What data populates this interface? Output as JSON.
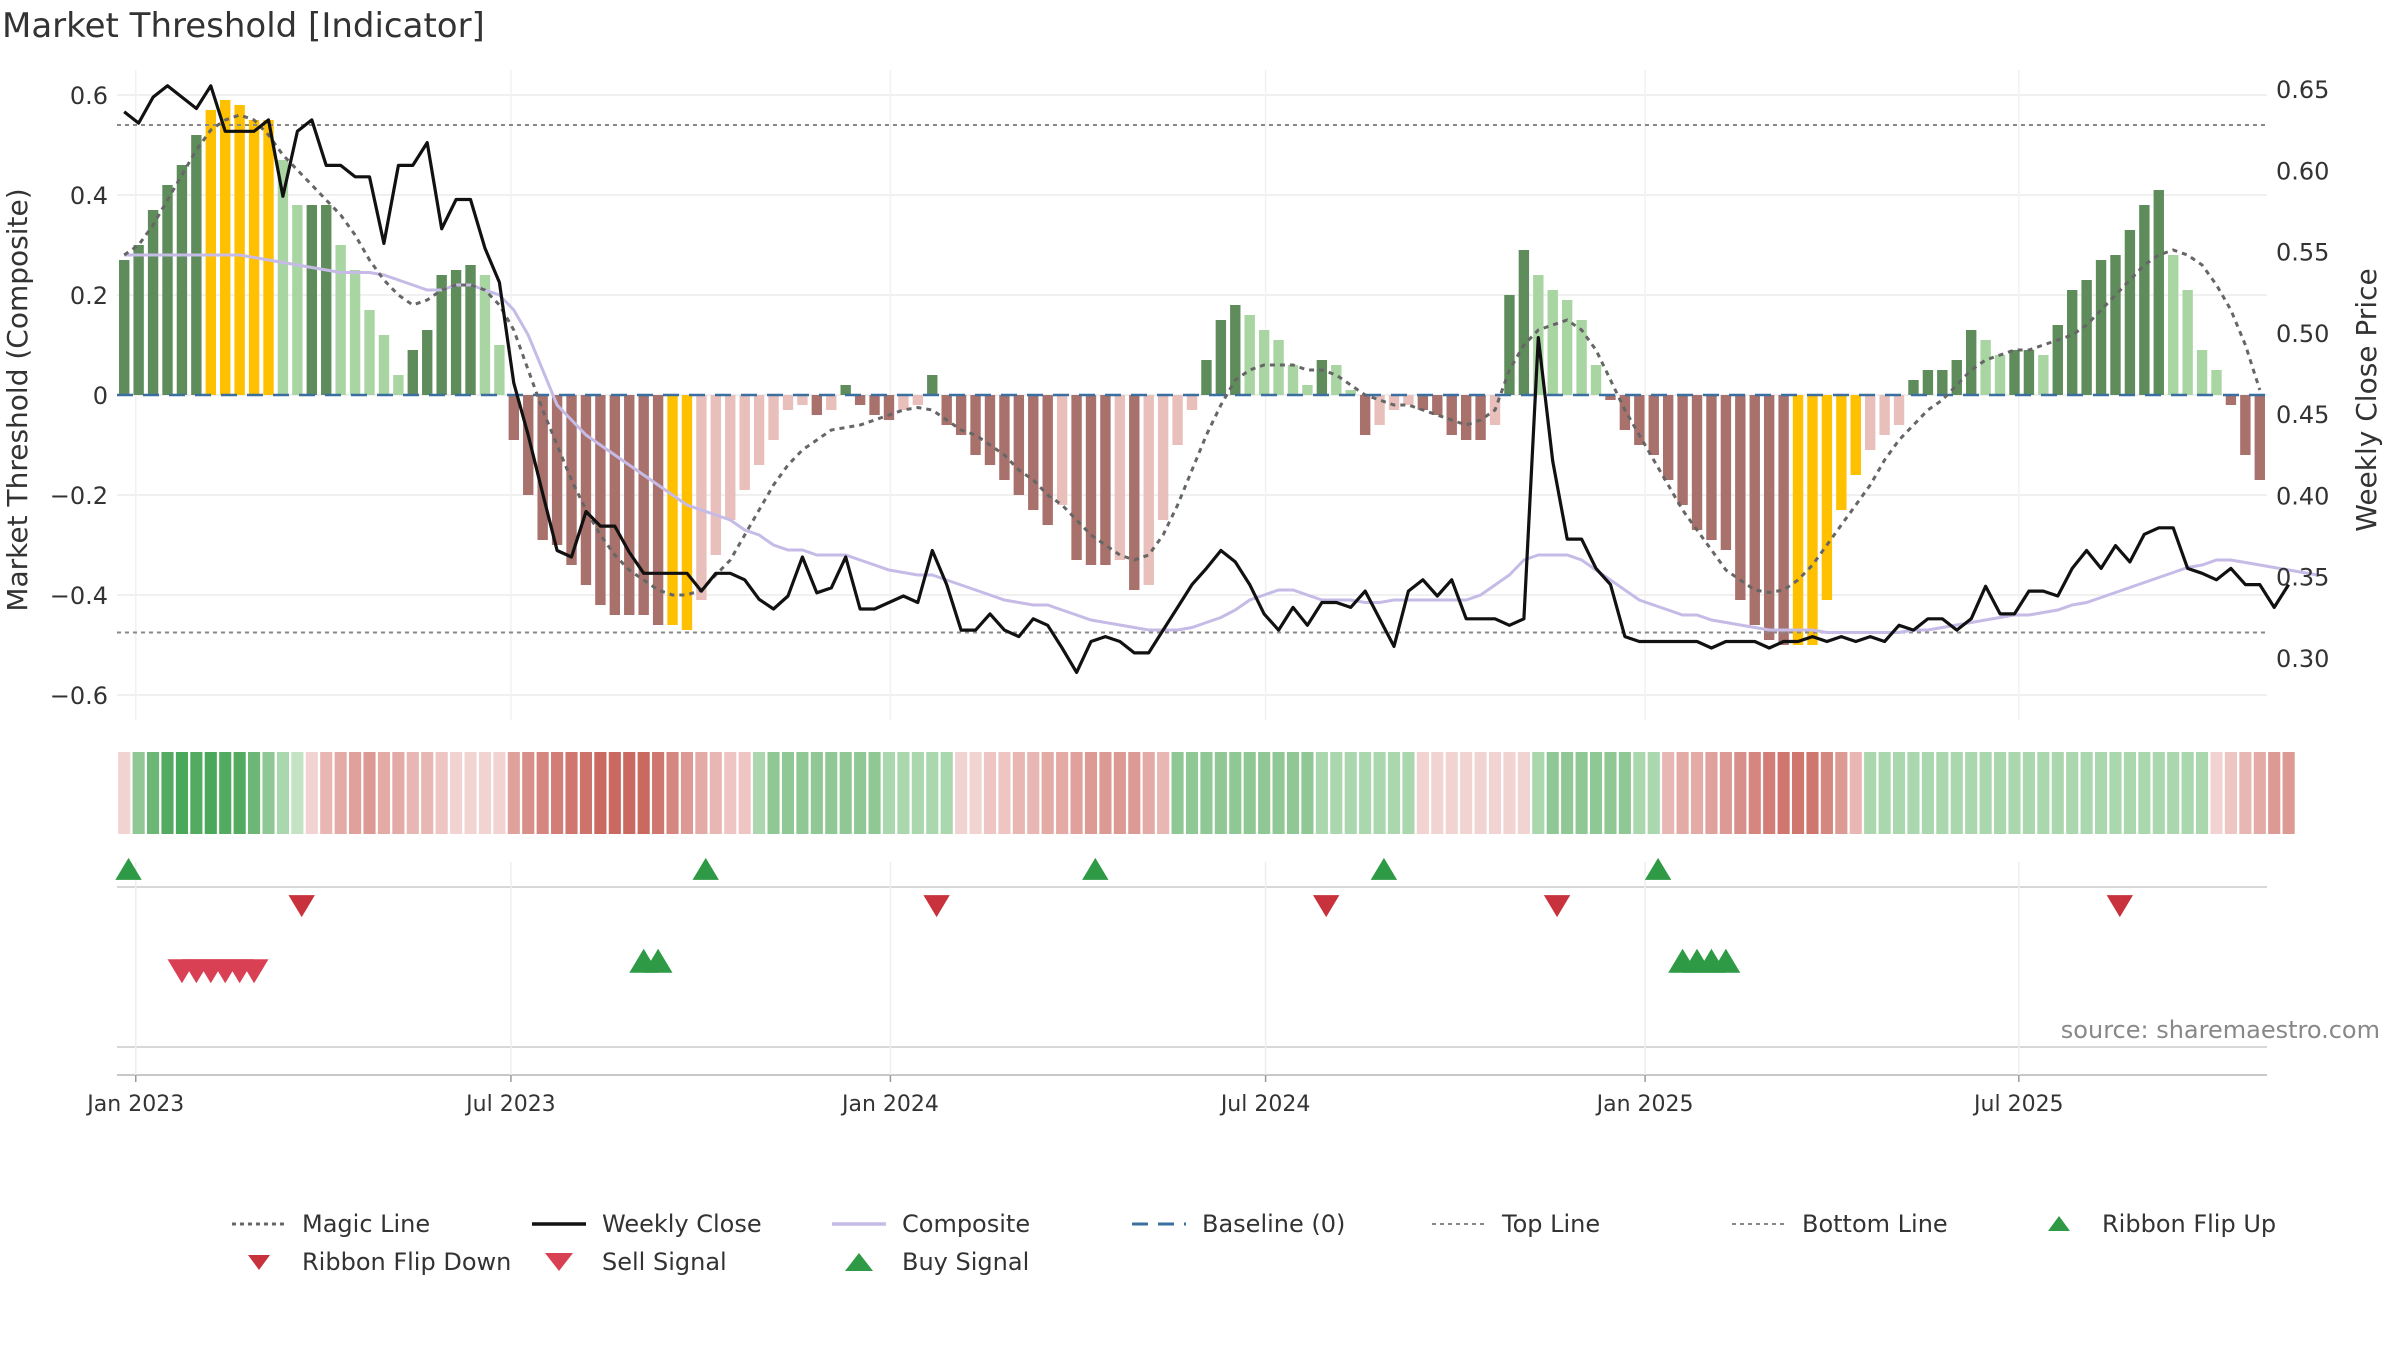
{
  "title": "Market Threshold [Indicator]",
  "source": "source: sharemaestro.com",
  "colors": {
    "strong_up": "#5e8d5b",
    "light_up": "#a9d5a3",
    "strong_down": "#a8716c",
    "light_down": "#e9bfbb",
    "extreme": "#ffc000",
    "composite": "#c6bbe6",
    "weekly_close": "#111111",
    "magic": "#666666",
    "baseline": "#3a6fa0",
    "buy": "#2e9a45",
    "sell": "#d94054",
    "flip_down": "#c8323c"
  },
  "legend": [
    {
      "label": "Magic Line",
      "icon": "dotted-line"
    },
    {
      "label": "Weekly Close",
      "icon": "solid-line"
    },
    {
      "label": "Composite",
      "icon": "lavender-line"
    },
    {
      "label": "Baseline (0)",
      "icon": "dashed-line"
    },
    {
      "label": "Top Line",
      "icon": "dotted-line"
    },
    {
      "label": "Bottom Line",
      "icon": "dotted-line"
    },
    {
      "label": "Ribbon Flip Up",
      "icon": "triangle-up"
    },
    {
      "label": "Ribbon Flip Down",
      "icon": "triangle-down"
    },
    {
      "label": "Sell Signal",
      "icon": "triangle-down"
    },
    {
      "label": "Buy Signal",
      "icon": "triangle-up"
    }
  ],
  "chart_data": {
    "type": "bar",
    "ylabel_left": "Market Threshold (Composite)",
    "ylabel_right": "Weekly Close Price",
    "ylim_left": [
      -0.65,
      0.65
    ],
    "yticks_left": [
      0.6,
      0.4,
      0.2,
      0,
      -0.2,
      -0.4,
      -0.6
    ],
    "ytick_labels_left": [
      "0.6",
      "0.4",
      "0.2",
      "0",
      "−0.2",
      "−0.4",
      "−0.6"
    ],
    "ylim_right": [
      0.2617,
      0.6617
    ],
    "yticks_right": [
      "0.65",
      "0.60",
      "0.55",
      "0.50",
      "0.45",
      "0.40",
      "0.35",
      "0.30"
    ],
    "x_ticks": [
      {
        "label": "Jan 2023",
        "week": 1.3
      },
      {
        "label": "Jul 2023",
        "week": 27.3
      },
      {
        "label": "Jan 2024",
        "week": 53.6
      },
      {
        "label": "Jul 2024",
        "week": 79.6
      },
      {
        "label": "Jan 2025",
        "week": 105.9
      },
      {
        "label": "Jul 2025",
        "week": 131.8
      }
    ],
    "top_line": 0.54,
    "bottom_line": -0.475,
    "grid": true,
    "legend_position": "bottom",
    "bar_values": [
      0.27,
      0.3,
      0.37,
      0.42,
      0.46,
      0.52,
      0.57,
      0.59,
      0.58,
      0.55,
      0.55,
      0.47,
      0.38,
      0.38,
      0.38,
      0.3,
      0.25,
      0.17,
      0.12,
      0.04,
      0.09,
      0.13,
      0.24,
      0.25,
      0.26,
      0.24,
      0.1,
      -0.09,
      -0.2,
      -0.29,
      -0.3,
      -0.34,
      -0.38,
      -0.42,
      -0.44,
      -0.44,
      -0.44,
      -0.46,
      -0.46,
      -0.47,
      -0.41,
      -0.32,
      -0.25,
      -0.19,
      -0.14,
      -0.09,
      -0.03,
      -0.02,
      -0.04,
      -0.03,
      0.02,
      -0.02,
      -0.04,
      -0.05,
      -0.03,
      -0.02,
      0.04,
      -0.06,
      -0.08,
      -0.12,
      -0.14,
      -0.17,
      -0.2,
      -0.23,
      -0.26,
      -0.22,
      -0.33,
      -0.34,
      -0.34,
      -0.33,
      -0.39,
      -0.38,
      -0.25,
      -0.1,
      -0.03,
      0.07,
      0.15,
      0.18,
      0.16,
      0.13,
      0.11,
      0.06,
      0.02,
      0.07,
      0.06,
      0.01,
      -0.08,
      -0.06,
      -0.03,
      -0.02,
      -0.03,
      -0.04,
      -0.08,
      -0.09,
      -0.09,
      -0.06,
      0.2,
      0.29,
      0.24,
      0.21,
      0.19,
      0.15,
      0.06,
      -0.01,
      -0.07,
      -0.1,
      -0.12,
      -0.17,
      -0.22,
      -0.27,
      -0.29,
      -0.31,
      -0.41,
      -0.46,
      -0.49,
      -0.5,
      -0.5,
      -0.5,
      -0.41,
      -0.23,
      -0.16,
      -0.11,
      -0.08,
      -0.06,
      0.03,
      0.05,
      0.05,
      0.07,
      0.13,
      0.11,
      0.08,
      0.09,
      0.09,
      0.08,
      0.14,
      0.21,
      0.23,
      0.27,
      0.28,
      0.33,
      0.38,
      0.41,
      0.28,
      0.21,
      0.09,
      0.05,
      -0.02,
      -0.12,
      -0.17
    ],
    "extreme_bars": [
      6,
      7,
      8,
      9,
      10,
      38,
      39,
      116,
      117,
      118,
      119,
      120
    ],
    "weekly_close": [
      0.636,
      0.629,
      0.645,
      0.652,
      0.645,
      0.638,
      0.652,
      0.624,
      0.624,
      0.624,
      0.631,
      0.584,
      0.624,
      0.631,
      0.603,
      0.603,
      0.596,
      0.596,
      0.555,
      0.603,
      0.603,
      0.617,
      0.564,
      0.582,
      0.582,
      0.552,
      0.531,
      0.469,
      0.437,
      0.401,
      0.366,
      0.362,
      0.39,
      0.381,
      0.381,
      0.365,
      0.352,
      0.352,
      0.352,
      0.352,
      0.341,
      0.352,
      0.352,
      0.348,
      0.336,
      0.33,
      0.338,
      0.362,
      0.34,
      0.343,
      0.362,
      0.33,
      0.33,
      0.334,
      0.338,
      0.334,
      0.366,
      0.345,
      0.317,
      0.317,
      0.327,
      0.317,
      0.313,
      0.324,
      0.32,
      0.306,
      0.291,
      0.31,
      0.313,
      0.31,
      0.303,
      0.303,
      0.317,
      0.331,
      0.345,
      0.355,
      0.366,
      0.359,
      0.345,
      0.327,
      0.317,
      0.331,
      0.32,
      0.334,
      0.334,
      0.331,
      0.341,
      0.324,
      0.307,
      0.341,
      0.348,
      0.338,
      0.348,
      0.324,
      0.324,
      0.324,
      0.32,
      0.324,
      0.497,
      0.421,
      0.373,
      0.373,
      0.355,
      0.345,
      0.313,
      0.31,
      0.31,
      0.31,
      0.31,
      0.31,
      0.306,
      0.31,
      0.31,
      0.31,
      0.306,
      0.31,
      0.31,
      0.313,
      0.31,
      0.313,
      0.31,
      0.313,
      0.31,
      0.32,
      0.317,
      0.324,
      0.324,
      0.317,
      0.324,
      0.344,
      0.327,
      0.327,
      0.341,
      0.341,
      0.338,
      0.355,
      0.366,
      0.355,
      0.369,
      0.359,
      0.376,
      0.38,
      0.38,
      0.355,
      0.352,
      0.348,
      0.355,
      0.345,
      0.345,
      0.331,
      0.345
    ],
    "composite": [
      0.28,
      0.28,
      0.28,
      0.28,
      0.28,
      0.28,
      0.28,
      0.28,
      0.28,
      0.275,
      0.27,
      0.265,
      0.26,
      0.255,
      0.25,
      0.245,
      0.245,
      0.245,
      0.24,
      0.23,
      0.22,
      0.21,
      0.21,
      0.22,
      0.22,
      0.21,
      0.2,
      0.17,
      0.12,
      0.05,
      -0.02,
      -0.05,
      -0.08,
      -0.1,
      -0.12,
      -0.14,
      -0.16,
      -0.18,
      -0.2,
      -0.22,
      -0.23,
      -0.24,
      -0.25,
      -0.27,
      -0.28,
      -0.3,
      -0.31,
      -0.31,
      -0.32,
      -0.32,
      -0.32,
      -0.33,
      -0.34,
      -0.35,
      -0.355,
      -0.36,
      -0.36,
      -0.37,
      -0.38,
      -0.39,
      -0.4,
      -0.41,
      -0.415,
      -0.42,
      -0.42,
      -0.43,
      -0.44,
      -0.45,
      -0.455,
      -0.46,
      -0.465,
      -0.47,
      -0.47,
      -0.47,
      -0.465,
      -0.455,
      -0.445,
      -0.43,
      -0.41,
      -0.4,
      -0.39,
      -0.39,
      -0.4,
      -0.41,
      -0.41,
      -0.41,
      -0.415,
      -0.415,
      -0.41,
      -0.41,
      -0.41,
      -0.41,
      -0.41,
      -0.41,
      -0.4,
      -0.38,
      -0.36,
      -0.33,
      -0.32,
      -0.32,
      -0.32,
      -0.33,
      -0.35,
      -0.37,
      -0.39,
      -0.41,
      -0.42,
      -0.43,
      -0.44,
      -0.44,
      -0.45,
      -0.455,
      -0.46,
      -0.465,
      -0.47,
      -0.47,
      -0.47,
      -0.47,
      -0.475,
      -0.475,
      -0.475,
      -0.475,
      -0.475,
      -0.475,
      -0.47,
      -0.47,
      -0.465,
      -0.46,
      -0.455,
      -0.45,
      -0.445,
      -0.44,
      -0.44,
      -0.435,
      -0.43,
      -0.42,
      -0.415,
      -0.405,
      -0.395,
      -0.385,
      -0.375,
      -0.365,
      -0.355,
      -0.345,
      -0.34,
      -0.33,
      -0.33,
      -0.335,
      -0.34,
      -0.345,
      -0.35,
      -0.355,
      -0.36
    ],
    "magic_line": [
      0.28,
      0.3,
      0.34,
      0.39,
      0.44,
      0.49,
      0.53,
      0.55,
      0.56,
      0.55,
      0.52,
      0.48,
      0.45,
      0.42,
      0.39,
      0.36,
      0.32,
      0.27,
      0.23,
      0.2,
      0.18,
      0.19,
      0.21,
      0.22,
      0.22,
      0.21,
      0.18,
      0.13,
      0.05,
      -0.03,
      -0.1,
      -0.17,
      -0.23,
      -0.28,
      -0.32,
      -0.35,
      -0.37,
      -0.39,
      -0.4,
      -0.4,
      -0.39,
      -0.36,
      -0.33,
      -0.28,
      -0.23,
      -0.18,
      -0.14,
      -0.11,
      -0.09,
      -0.07,
      -0.065,
      -0.06,
      -0.05,
      -0.04,
      -0.03,
      -0.025,
      -0.03,
      -0.05,
      -0.07,
      -0.08,
      -0.1,
      -0.12,
      -0.15,
      -0.17,
      -0.2,
      -0.22,
      -0.25,
      -0.28,
      -0.3,
      -0.32,
      -0.33,
      -0.32,
      -0.28,
      -0.22,
      -0.15,
      -0.08,
      -0.02,
      0.03,
      0.05,
      0.06,
      0.06,
      0.06,
      0.05,
      0.05,
      0.04,
      0.02,
      0,
      -0.01,
      -0.02,
      -0.02,
      -0.03,
      -0.04,
      -0.05,
      -0.06,
      -0.05,
      -0.03,
      0.05,
      0.1,
      0.13,
      0.14,
      0.15,
      0.13,
      0.09,
      0.03,
      -0.03,
      -0.08,
      -0.13,
      -0.18,
      -0.23,
      -0.27,
      -0.31,
      -0.35,
      -0.37,
      -0.39,
      -0.395,
      -0.39,
      -0.37,
      -0.34,
      -0.3,
      -0.26,
      -0.22,
      -0.18,
      -0.13,
      -0.09,
      -0.06,
      -0.03,
      -0.01,
      0.02,
      0.05,
      0.07,
      0.08,
      0.09,
      0.09,
      0.1,
      0.11,
      0.12,
      0.14,
      0.17,
      0.2,
      0.23,
      0.26,
      0.28,
      0.29,
      0.28,
      0.26,
      0.22,
      0.17,
      0.1,
      0.01
    ],
    "ribbon_colors": [
      "#f1d4d2",
      "#90c895",
      "#6cb776",
      "#52ab60",
      "#4aa85a",
      "#52ab60",
      "#4aa85a",
      "#52ab60",
      "#52ab60",
      "#6cb776",
      "#90c895",
      "#aad7ad",
      "#c3e3c4",
      "#f1d4d2",
      "#e9b7b3",
      "#e4aaa5",
      "#e0a19c",
      "#dd9a94",
      "#e4aaa5",
      "#e4aaa5",
      "#e9b7b3",
      "#e9b7b3",
      "#eec5c2",
      "#f1d4d2",
      "#f1d4d2",
      "#f1d4d2",
      "#f1d4d2",
      "#e0a19c",
      "#d98f89",
      "#d5867f",
      "#d27e77",
      "#cf766e",
      "#ce736b",
      "#c96960",
      "#c96960",
      "#c96960",
      "#c96960",
      "#cf766e",
      "#d5867f",
      "#dd9a94",
      "#e4aaa5",
      "#e9b7b3",
      "#eec5c2",
      "#eec5c2",
      "#aad7ad",
      "#90c895",
      "#90c895",
      "#90c895",
      "#90c895",
      "#90c895",
      "#90c895",
      "#90c895",
      "#90c895",
      "#aad7ad",
      "#aad7ad",
      "#aad7ad",
      "#aad7ad",
      "#aad7ad",
      "#f1d4d2",
      "#f1d4d2",
      "#eec5c2",
      "#eec5c2",
      "#e9b7b3",
      "#e9b7b3",
      "#e4aaa5",
      "#e4aaa5",
      "#e0a19c",
      "#dd9a94",
      "#dd9a94",
      "#dd9a94",
      "#dd9a94",
      "#e4aaa5",
      "#e9b7b3",
      "#90c895",
      "#90c895",
      "#90c895",
      "#90c895",
      "#90c895",
      "#90c895",
      "#90c895",
      "#90c895",
      "#90c895",
      "#90c895",
      "#aad7ad",
      "#aad7ad",
      "#aad7ad",
      "#aad7ad",
      "#aad7ad",
      "#aad7ad",
      "#aad7ad",
      "#f1d4d2",
      "#f1d4d2",
      "#f1d4d2",
      "#f1d4d2",
      "#f1d4d2",
      "#f1d4d2",
      "#f1d4d2",
      "#f1d4d2",
      "#aad7ad",
      "#90c895",
      "#90c895",
      "#90c895",
      "#90c895",
      "#90c895",
      "#90c895",
      "#aad7ad",
      "#aad7ad",
      "#e9b7b3",
      "#e4aaa5",
      "#e4aaa5",
      "#e0a19c",
      "#dd9a94",
      "#d98f89",
      "#d5867f",
      "#d27e77",
      "#cf766e",
      "#cf766e",
      "#cf766e",
      "#d5867f",
      "#dd9a94",
      "#e9b7b3",
      "#aad7ad",
      "#aad7ad",
      "#aad7ad",
      "#aad7ad",
      "#aad7ad",
      "#aad7ad",
      "#aad7ad",
      "#aad7ad",
      "#aad7ad",
      "#aad7ad",
      "#aad7ad",
      "#aad7ad",
      "#aad7ad",
      "#aad7ad",
      "#aad7ad",
      "#aad7ad",
      "#aad7ad",
      "#aad7ad",
      "#aad7ad",
      "#aad7ad",
      "#aad7ad",
      "#aad7ad",
      "#aad7ad",
      "#aad7ad",
      "#f1d4d2",
      "#eec5c2",
      "#e9b7b3",
      "#e4aaa5",
      "#dd9a94",
      "#dd9a94"
    ],
    "ribbon_flip_up": [
      0,
      40,
      67,
      87,
      106
    ],
    "ribbon_flip_down": [
      12,
      56,
      83,
      99,
      138
    ],
    "sell_signals": [
      4,
      5,
      6,
      7,
      8,
      9
    ],
    "buy_signals": [
      36,
      37,
      108,
      109,
      110,
      111
    ],
    "flip_up_week_offset": 0.8,
    "flip_down_week_offset": 0.8
  }
}
